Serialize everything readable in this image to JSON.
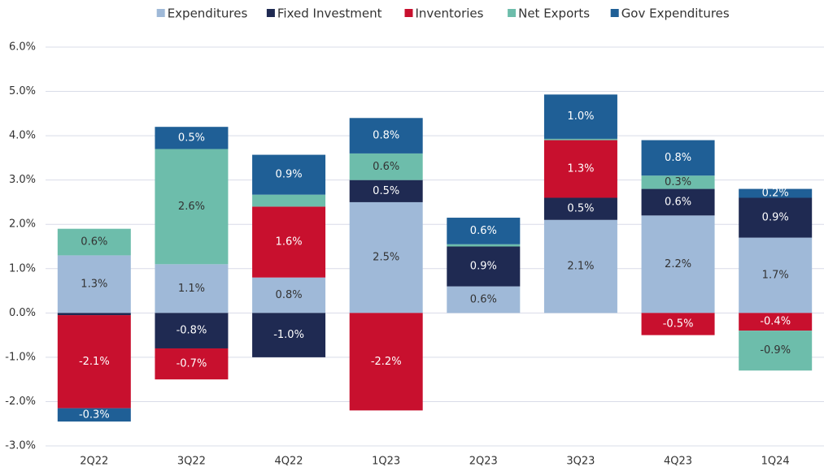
{
  "chart_data": {
    "type": "stacked_bar",
    "categories": [
      "2Q22",
      "3Q22",
      "4Q22",
      "1Q23",
      "2Q23",
      "3Q23",
      "4Q23",
      "1Q24"
    ],
    "series": [
      {
        "name": "Expenditures",
        "color": "#9fb9d8",
        "values": [
          1.3,
          1.1,
          0.8,
          2.5,
          0.6,
          2.1,
          2.2,
          1.7
        ],
        "value_labels": [
          "1.3%",
          "1.1%",
          "0.8%",
          "2.5%",
          "0.6%",
          "2.1%",
          "2.2%",
          "1.7%"
        ]
      },
      {
        "name": "Fixed Investment",
        "color": "#1f2a52",
        "values": [
          -0.05,
          -0.8,
          -1.0,
          0.5,
          0.9,
          0.5,
          0.6,
          0.9
        ],
        "value_labels": [
          null,
          "-0.8%",
          "-1.0%",
          "0.5%",
          "0.9%",
          "0.5%",
          "0.6%",
          "0.9%"
        ]
      },
      {
        "name": "Inventories",
        "color": "#c8102e",
        "values": [
          -2.1,
          -0.7,
          1.6,
          -2.2,
          0,
          1.3,
          -0.5,
          -0.4
        ],
        "value_labels": [
          "-2.1%",
          "-0.7%",
          "1.6%",
          "-2.2%",
          null,
          "1.3%",
          "-0.5%",
          "-0.4%"
        ]
      },
      {
        "name": "Net Exports",
        "color": "#6dbdab",
        "values": [
          0.6,
          2.6,
          0.27,
          0.6,
          0.05,
          0.03,
          0.3,
          -0.9
        ],
        "value_labels": [
          "0.6%",
          "2.6%",
          null,
          "0.6%",
          null,
          null,
          "0.3%",
          "-0.9%"
        ]
      },
      {
        "name": "Gov Expenditures",
        "color": "#1f5f96",
        "values": [
          -0.3,
          0.5,
          0.9,
          0.8,
          0.6,
          1.0,
          0.8,
          0.2
        ],
        "value_labels": [
          "-0.3%",
          "0.5%",
          "0.9%",
          "0.8%",
          "0.6%",
          "1.0%",
          "0.8%",
          "0.2%"
        ]
      }
    ],
    "ylim": [
      -3,
      6
    ],
    "yticks": [
      {
        "value": -3,
        "label": "-3.0%"
      },
      {
        "value": -2,
        "label": "-2.0%"
      },
      {
        "value": -1,
        "label": "-1.0%"
      },
      {
        "value": 0,
        "label": "0.0%"
      },
      {
        "value": 1,
        "label": "1.0%"
      },
      {
        "value": 2,
        "label": "2.0%"
      },
      {
        "value": 3,
        "label": "3.0%"
      },
      {
        "value": 4,
        "label": "4.0%"
      },
      {
        "value": 5,
        "label": "5.0%"
      },
      {
        "value": 6,
        "label": "6.0%"
      }
    ],
    "grid": true,
    "legend": "top"
  }
}
